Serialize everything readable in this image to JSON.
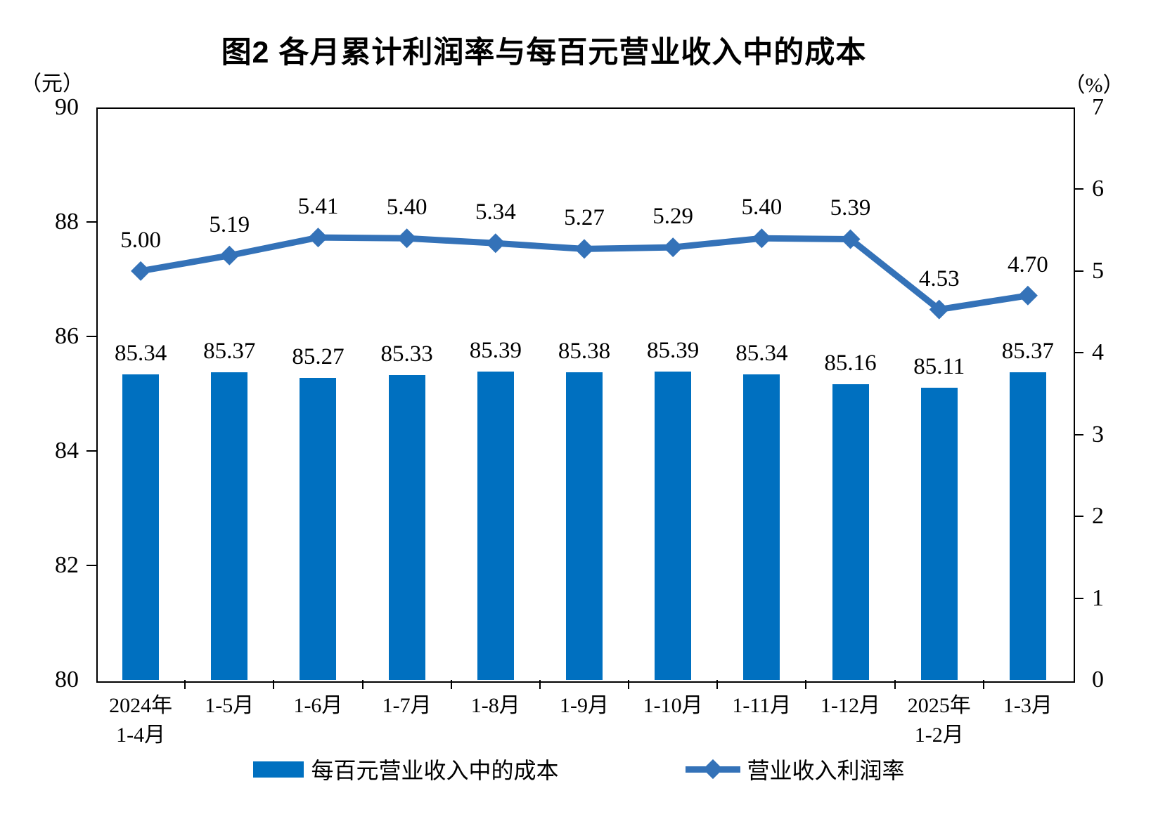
{
  "title": "图2  各月累计利润率与每百元营业收入中的成本",
  "left_axis": {
    "unit": "（元）",
    "min": 80,
    "max": 90,
    "ticks": [
      "90",
      "88",
      "86",
      "84",
      "82",
      "80"
    ]
  },
  "right_axis": {
    "unit": "（%）",
    "min": 0,
    "max": 7,
    "ticks": [
      "7",
      "6",
      "5",
      "4",
      "3",
      "2",
      "1",
      "0"
    ]
  },
  "chart_data": {
    "type": "bar",
    "subtype": "bar-line-combo",
    "categories": [
      [
        "2024年",
        "1-4月"
      ],
      [
        "1-5月"
      ],
      [
        "1-6月"
      ],
      [
        "1-7月"
      ],
      [
        "1-8月"
      ],
      [
        "1-9月"
      ],
      [
        "1-10月"
      ],
      [
        "1-11月"
      ],
      [
        "1-12月"
      ],
      [
        "2025年",
        "1-2月"
      ],
      [
        "1-3月"
      ]
    ],
    "series": [
      {
        "name": "每百元营业收入中的成本",
        "type": "bar",
        "axis": "left",
        "color": "#0070C0",
        "values": [
          85.34,
          85.37,
          85.27,
          85.33,
          85.39,
          85.38,
          85.39,
          85.34,
          85.16,
          85.11,
          85.37
        ],
        "labels": [
          "85.34",
          "85.37",
          "85.27",
          "85.33",
          "85.39",
          "85.38",
          "85.39",
          "85.34",
          "85.16",
          "85.11",
          "85.37"
        ]
      },
      {
        "name": "营业收入利润率",
        "type": "line",
        "axis": "right",
        "color": "#3472B8",
        "values": [
          5.0,
          5.19,
          5.41,
          5.4,
          5.34,
          5.27,
          5.29,
          5.4,
          5.39,
          4.53,
          4.7
        ],
        "labels": [
          "5.00",
          "5.19",
          "5.41",
          "5.40",
          "5.34",
          "5.27",
          "5.29",
          "5.40",
          "5.39",
          "4.53",
          "4.70"
        ]
      }
    ],
    "left_ylim": [
      80,
      90
    ],
    "right_ylim": [
      0,
      7
    ],
    "grid": false,
    "legend_position": "bottom"
  },
  "legend": {
    "items": [
      {
        "label": "每百元营业收入中的成本",
        "swatch": "bar"
      },
      {
        "label": "营业收入利润率",
        "swatch": "line-diamond"
      }
    ]
  }
}
